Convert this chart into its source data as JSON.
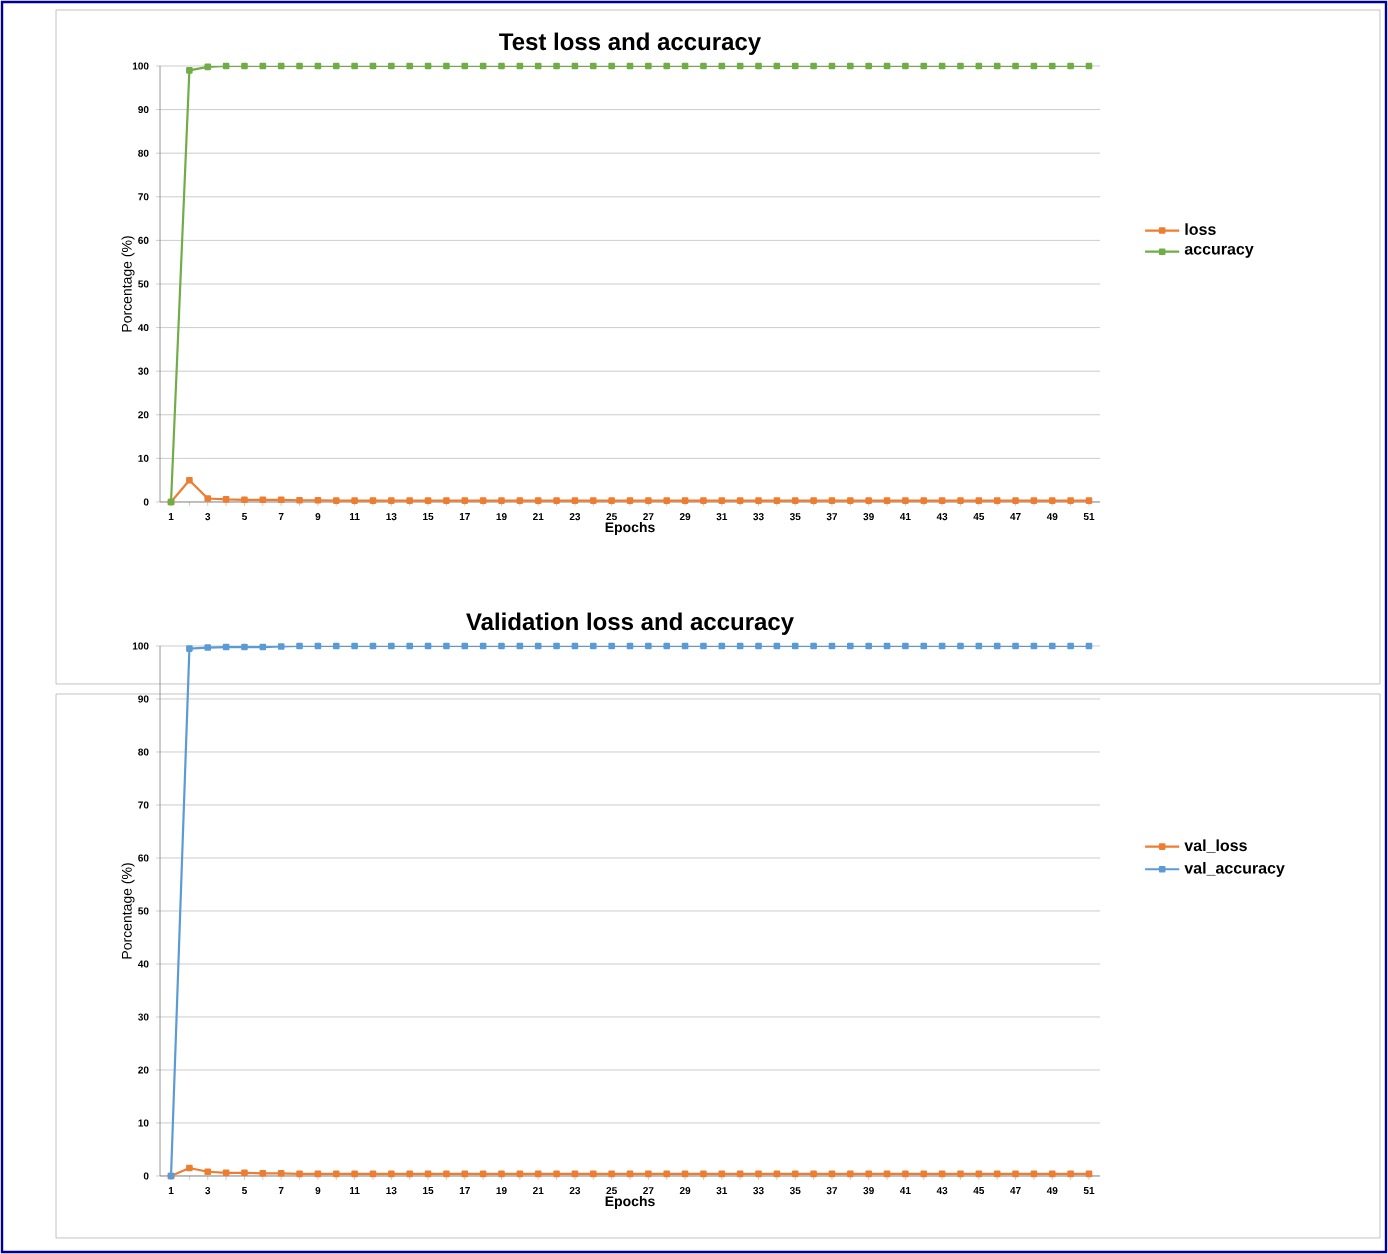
{
  "chart_data": [
    {
      "type": "line",
      "title": "Test loss and accuracy",
      "xlabel": "Epochs",
      "ylabel": "Porcentage (%)",
      "categories": [
        "1",
        null,
        "3",
        null,
        "5",
        null,
        "7",
        null,
        "9",
        null,
        "11",
        null,
        "13",
        null,
        "15",
        null,
        "17",
        null,
        "19",
        null,
        "21",
        null,
        "23",
        null,
        "25",
        null,
        "27",
        null,
        "29",
        null,
        "31",
        null,
        "33",
        null,
        "35",
        null,
        "37",
        null,
        "39",
        null,
        "41",
        null,
        "43",
        null,
        "45",
        null,
        "47",
        null,
        "49",
        null,
        "51"
      ],
      "series": [
        {
          "name": "loss",
          "color": "#ed7d31",
          "values": [
            0,
            5,
            0.8,
            0.6,
            0.5,
            0.5,
            0.5,
            0.4,
            0.4,
            0.3,
            0.3,
            0.3,
            0.3,
            0.3,
            0.3,
            0.3,
            0.3,
            0.3,
            0.3,
            0.3,
            0.3,
            0.3,
            0.3,
            0.3,
            0.3,
            0.3,
            0.3,
            0.3,
            0.3,
            0.3,
            0.3,
            0.3,
            0.3,
            0.3,
            0.3,
            0.3,
            0.3,
            0.3,
            0.3,
            0.3,
            0.3,
            0.3,
            0.3,
            0.3,
            0.3,
            0.3,
            0.3,
            0.3,
            0.3,
            0.3,
            0.3
          ]
        },
        {
          "name": "accuracy",
          "color": "#70ad47",
          "values": [
            0,
            99,
            99.8,
            100,
            100,
            100,
            100,
            100,
            100,
            100,
            100,
            100,
            100,
            100,
            100,
            100,
            100,
            100,
            100,
            100,
            100,
            100,
            100,
            100,
            100,
            100,
            100,
            100,
            100,
            100,
            100,
            100,
            100,
            100,
            100,
            100,
            100,
            100,
            100,
            100,
            100,
            100,
            100,
            100,
            100,
            100,
            100,
            100,
            100,
            100,
            100
          ]
        }
      ],
      "ylim": [
        0,
        100
      ],
      "yticks": [
        0,
        10,
        20,
        30,
        40,
        50,
        60,
        70,
        80,
        90,
        100
      ],
      "grid": "y",
      "legend": "right",
      "marker": "square"
    },
    {
      "type": "line",
      "title": "Validation loss and accuracy",
      "xlabel": "Epochs",
      "ylabel": "Porcentage (%)",
      "categories": [
        "1",
        null,
        "3",
        null,
        "5",
        null,
        "7",
        null,
        "9",
        null,
        "11",
        null,
        "13",
        null,
        "15",
        null,
        "17",
        null,
        "19",
        null,
        "21",
        null,
        "23",
        null,
        "25",
        null,
        "27",
        null,
        "29",
        null,
        "31",
        null,
        "33",
        null,
        "35",
        null,
        "37",
        null,
        "39",
        null,
        "41",
        null,
        "43",
        null,
        "45",
        null,
        "47",
        null,
        "49",
        null,
        "51"
      ],
      "series": [
        {
          "name": "val_loss",
          "color": "#ed7d31",
          "values": [
            0,
            1.5,
            0.8,
            0.6,
            0.6,
            0.5,
            0.5,
            0.4,
            0.4,
            0.4,
            0.4,
            0.4,
            0.4,
            0.4,
            0.4,
            0.4,
            0.4,
            0.4,
            0.4,
            0.4,
            0.4,
            0.4,
            0.4,
            0.4,
            0.4,
            0.4,
            0.4,
            0.4,
            0.4,
            0.4,
            0.4,
            0.4,
            0.4,
            0.4,
            0.4,
            0.4,
            0.4,
            0.4,
            0.4,
            0.4,
            0.4,
            0.4,
            0.4,
            0.4,
            0.4,
            0.4,
            0.4,
            0.4,
            0.4,
            0.4,
            0.4
          ]
        },
        {
          "name": "val_accuracy",
          "color": "#5b9bd5",
          "values": [
            0,
            99.5,
            99.7,
            99.8,
            99.8,
            99.8,
            99.9,
            100,
            100,
            100,
            100,
            100,
            100,
            100,
            100,
            100,
            100,
            100,
            100,
            100,
            100,
            100,
            100,
            100,
            100,
            100,
            100,
            100,
            100,
            100,
            100,
            100,
            100,
            100,
            100,
            100,
            100,
            100,
            100,
            100,
            100,
            100,
            100,
            100,
            100,
            100,
            100,
            100,
            100,
            100,
            100
          ]
        }
      ],
      "ylim": [
        0,
        100
      ],
      "yticks": [
        0,
        10,
        20,
        30,
        40,
        50,
        60,
        70,
        80,
        90,
        100
      ],
      "grid": "y",
      "legend": "right",
      "marker": "square"
    }
  ]
}
